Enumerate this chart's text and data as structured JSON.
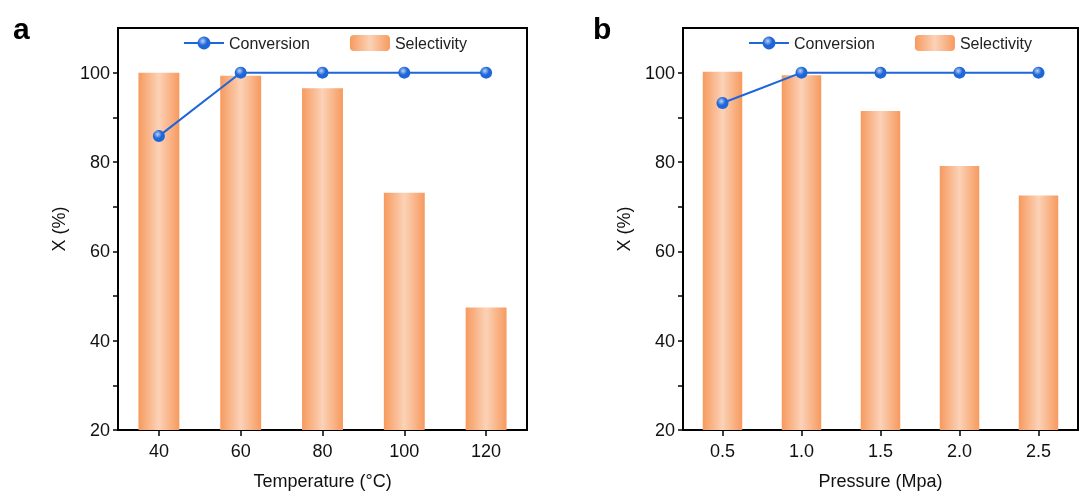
{
  "chart_data": [
    {
      "type": "bar",
      "title": "a",
      "xlabel": "Temperature (°C)",
      "ylabel": "X (%)",
      "categories": [
        "40",
        "60",
        "80",
        "100",
        "120"
      ],
      "series": [
        {
          "name": "Conversion",
          "type": "line",
          "color": "#1f66d9",
          "values": [
            85.8,
            100,
            100,
            100,
            100
          ]
        },
        {
          "name": "Selectivity",
          "color": "#f79a5e",
          "values": [
            100,
            99.3,
            96.5,
            73.1,
            47.4
          ]
        }
      ],
      "ylim": [
        20,
        110
      ],
      "yticks": [
        20,
        {
          "value": 30,
          "label": null
        },
        40,
        {
          "value": 50,
          "label": null
        },
        60,
        {
          "value": 70,
          "label": null
        },
        80,
        {
          "value": 90,
          "label": null
        },
        100
      ],
      "legend": "top",
      "grid": false,
      "marker": "circle"
    },
    {
      "type": "bar",
      "title": "b",
      "xlabel": "Pressure (Mpa)",
      "ylabel": "X (%)",
      "categories": [
        "0.5",
        "1.0",
        "1.5",
        "2.0",
        "2.5"
      ],
      "series": [
        {
          "name": "Conversion",
          "type": "line",
          "color": "#1f66d9",
          "values": [
            93.2,
            100,
            100,
            100,
            100
          ]
        },
        {
          "name": "Selectivity",
          "color": "#f79a5e",
          "values": [
            100.2,
            99.4,
            91.4,
            79.1,
            72.5
          ]
        }
      ],
      "ylim": [
        20,
        110
      ],
      "yticks": [
        20,
        {
          "value": 30,
          "label": null
        },
        40,
        {
          "value": 50,
          "label": null
        },
        60,
        {
          "value": 70,
          "label": null
        },
        80,
        {
          "value": 90,
          "label": null
        },
        100
      ],
      "legend": "top",
      "grid": false,
      "marker": "circle"
    }
  ]
}
